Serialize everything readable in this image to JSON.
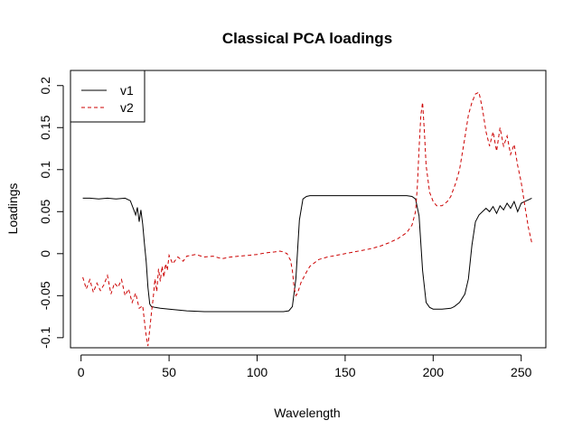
{
  "chart_data": {
    "type": "line",
    "title": "Classical PCA loadings",
    "xlabel": "Wavelength",
    "ylabel": "Loadings",
    "xlim": [
      -6,
      264
    ],
    "ylim": [
      -0.112,
      0.218
    ],
    "xticks": [
      0,
      50,
      100,
      150,
      200,
      250
    ],
    "xtick_labels": [
      "0",
      "50",
      "100",
      "150",
      "200",
      "250"
    ],
    "yticks": [
      -0.1,
      -0.05,
      0,
      0.05,
      0.1,
      0.15,
      0.2
    ],
    "ytick_labels": [
      "-0.1",
      "-0.05",
      "0",
      "0.05",
      "0.1",
      "0.15",
      "0.2"
    ],
    "grid": false,
    "legend_position": "top-left",
    "series": [
      {
        "name": "v1",
        "color": "#000000",
        "dash": "solid",
        "x": [
          1,
          5,
          10,
          15,
          20,
          25,
          28,
          30,
          31,
          32,
          33,
          34,
          35,
          36,
          37,
          38,
          39,
          40,
          42,
          45,
          50,
          60,
          70,
          80,
          90,
          100,
          110,
          115,
          118,
          120,
          122,
          124,
          126,
          128,
          130,
          140,
          150,
          160,
          170,
          180,
          185,
          188,
          190,
          192,
          194,
          196,
          198,
          200,
          205,
          210,
          212,
          215,
          218,
          220,
          222,
          224,
          226,
          228,
          230,
          232,
          234,
          236,
          238,
          240,
          242,
          244,
          246,
          248,
          250,
          252,
          254,
          256
        ],
        "y": [
          0.066,
          0.066,
          0.065,
          0.066,
          0.065,
          0.066,
          0.063,
          0.052,
          0.046,
          0.055,
          0.038,
          0.052,
          0.035,
          0.012,
          -0.01,
          -0.04,
          -0.06,
          -0.063,
          -0.064,
          -0.065,
          -0.066,
          -0.068,
          -0.069,
          -0.069,
          -0.069,
          -0.069,
          -0.069,
          -0.069,
          -0.068,
          -0.063,
          -0.03,
          0.04,
          0.065,
          0.068,
          0.069,
          0.069,
          0.069,
          0.069,
          0.069,
          0.069,
          0.069,
          0.068,
          0.065,
          0.045,
          -0.02,
          -0.058,
          -0.064,
          -0.066,
          -0.066,
          -0.065,
          -0.063,
          -0.058,
          -0.048,
          -0.03,
          0.01,
          0.038,
          0.046,
          0.05,
          0.054,
          0.05,
          0.056,
          0.048,
          0.057,
          0.052,
          0.06,
          0.054,
          0.062,
          0.05,
          0.06,
          0.062,
          0.064,
          0.066
        ]
      },
      {
        "name": "v2",
        "color": "#cc0000",
        "dash": "dashed",
        "x": [
          1,
          3,
          5,
          7,
          9,
          11,
          13,
          15,
          17,
          19,
          21,
          23,
          25,
          27,
          29,
          31,
          33,
          35,
          36,
          37,
          38,
          39,
          40,
          41,
          42,
          43,
          44,
          45,
          46,
          47,
          48,
          49,
          50,
          52,
          55,
          58,
          60,
          65,
          70,
          75,
          80,
          85,
          90,
          95,
          100,
          105,
          110,
          113,
          115,
          117,
          119,
          120,
          121,
          122,
          123,
          125,
          128,
          130,
          135,
          140,
          145,
          150,
          155,
          160,
          165,
          170,
          175,
          180,
          185,
          188,
          190,
          191,
          192,
          193,
          194,
          195,
          196,
          198,
          200,
          202,
          205,
          208,
          210,
          213,
          215,
          218,
          220,
          222,
          224,
          226,
          228,
          230,
          232,
          234,
          236,
          238,
          240,
          242,
          244,
          246,
          248,
          250,
          252,
          254,
          256
        ],
        "y": [
          -0.028,
          -0.042,
          -0.031,
          -0.046,
          -0.035,
          -0.044,
          -0.037,
          -0.026,
          -0.048,
          -0.035,
          -0.04,
          -0.031,
          -0.05,
          -0.042,
          -0.058,
          -0.047,
          -0.065,
          -0.062,
          -0.08,
          -0.098,
          -0.11,
          -0.09,
          -0.07,
          -0.052,
          -0.03,
          -0.045,
          -0.018,
          -0.033,
          -0.015,
          -0.028,
          -0.012,
          -0.02,
          -0.002,
          -0.012,
          -0.004,
          -0.009,
          -0.003,
          -0.001,
          -0.004,
          -0.003,
          -0.006,
          -0.004,
          -0.003,
          -0.002,
          -0.001,
          0.001,
          0.002,
          0.003,
          0.002,
          0.0,
          -0.008,
          -0.02,
          -0.04,
          -0.05,
          -0.047,
          -0.034,
          -0.022,
          -0.015,
          -0.007,
          -0.004,
          -0.002,
          0.0,
          0.002,
          0.004,
          0.006,
          0.009,
          0.013,
          0.018,
          0.025,
          0.034,
          0.05,
          0.08,
          0.125,
          0.165,
          0.18,
          0.145,
          0.105,
          0.073,
          0.062,
          0.057,
          0.057,
          0.062,
          0.068,
          0.085,
          0.1,
          0.138,
          0.165,
          0.18,
          0.19,
          0.192,
          0.172,
          0.145,
          0.128,
          0.145,
          0.122,
          0.15,
          0.128,
          0.14,
          0.118,
          0.13,
          0.105,
          0.085,
          0.058,
          0.032,
          0.013
        ]
      }
    ]
  }
}
